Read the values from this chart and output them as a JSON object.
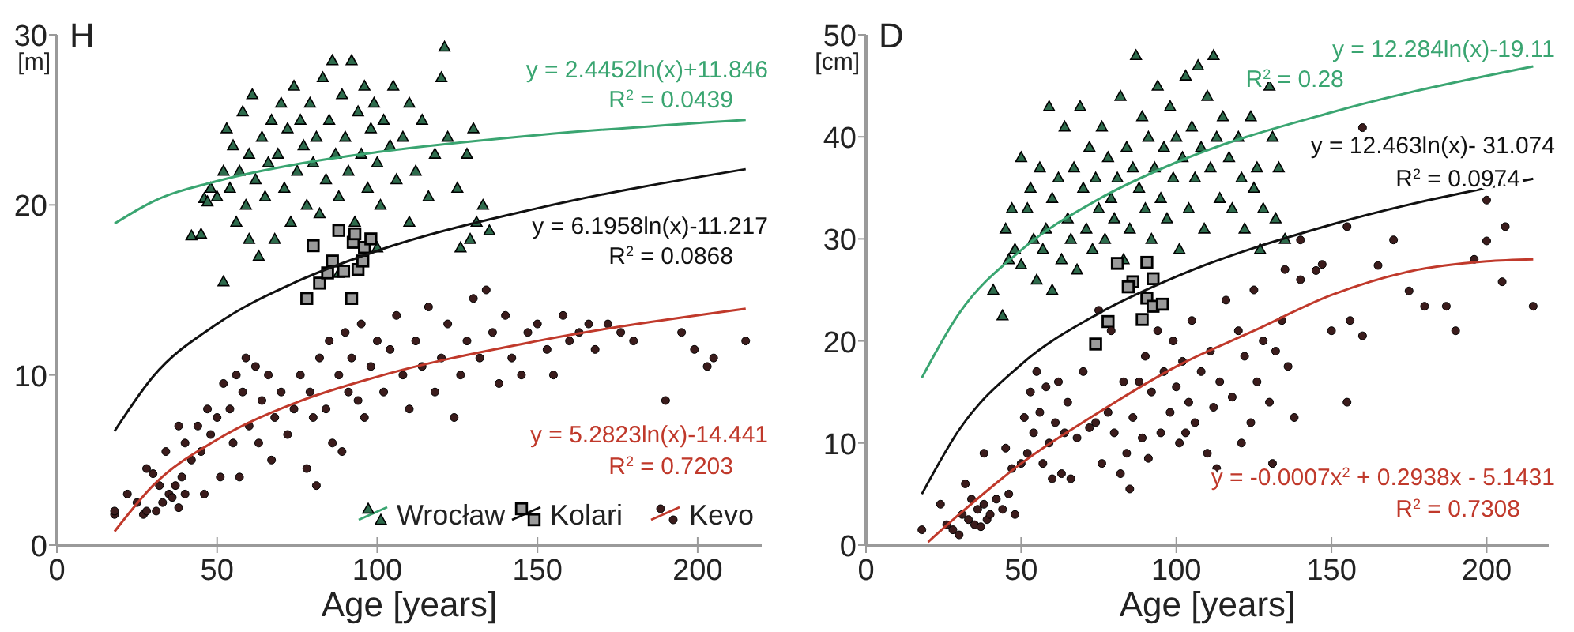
{
  "chart_data": [
    {
      "type": "scatter",
      "title": "H",
      "ylabel": "[m]",
      "xlabel": "Age [years]",
      "xlim": [
        0,
        220
      ],
      "ylim": [
        0,
        30
      ],
      "xticks": [
        0,
        50,
        100,
        150,
        200
      ],
      "yticks": [
        0,
        10,
        20,
        30
      ],
      "legend": "bottom right",
      "series": [
        {
          "name": "Wrocław",
          "marker": "triangle",
          "color": "#2e6b4c",
          "x": [
            42,
            45,
            46,
            47,
            48,
            50,
            52,
            52,
            53,
            54,
            55,
            56,
            57,
            58,
            59,
            60,
            60,
            61,
            62,
            63,
            64,
            65,
            66,
            67,
            68,
            69,
            70,
            71,
            72,
            73,
            74,
            75,
            76,
            77,
            78,
            79,
            80,
            81,
            82,
            83,
            84,
            85,
            86,
            87,
            88,
            89,
            90,
            91,
            92,
            93,
            94,
            95,
            96,
            97,
            98,
            99,
            100,
            101,
            102,
            104,
            105,
            106,
            108,
            110,
            112,
            114,
            116,
            118,
            120,
            121,
            122,
            125,
            128,
            130,
            131,
            133,
            135,
            126,
            129,
            110,
            100,
            88
          ],
          "values": [
            18.2,
            18.3,
            20.4,
            20.2,
            21,
            20.5,
            15.5,
            22,
            24.5,
            21,
            23.5,
            19,
            22,
            25.5,
            20,
            18,
            23,
            26.5,
            21.5,
            17,
            24,
            20.5,
            22.5,
            25,
            18,
            23,
            26,
            21,
            24.5,
            19,
            27,
            22,
            25,
            23.5,
            20,
            26,
            22.5,
            24,
            19.5,
            27.5,
            21.5,
            25,
            28.5,
            23,
            20.5,
            26.5,
            24,
            22,
            28.5,
            19,
            25.5,
            23,
            27,
            21,
            24.5,
            26,
            22.5,
            20,
            25,
            23.5,
            27,
            21.5,
            24,
            26,
            22,
            25,
            20.5,
            23,
            27.5,
            29.3,
            24,
            21,
            23,
            24.5,
            19,
            20,
            18.5,
            17.5,
            18,
            19,
            17.5,
            16
          ]
        },
        {
          "name": "Kolari",
          "marker": "square",
          "color": "#9a9a9a",
          "x": [
            78,
            82,
            80,
            84.5,
            86,
            88,
            89.5,
            92,
            92.5,
            94,
            95.5,
            96,
            93,
            98
          ],
          "values": [
            14.5,
            15.4,
            17.6,
            16,
            16.7,
            18.5,
            16.1,
            14.5,
            17.8,
            16.2,
            16.7,
            17.5,
            18.3,
            18
          ]
        },
        {
          "name": "Kevo",
          "marker": "circle",
          "color": "#3b1c1c",
          "x": [
            18,
            18,
            22,
            25,
            27,
            28,
            28,
            30,
            31,
            32,
            33,
            34,
            35,
            36,
            37,
            38,
            38,
            39,
            40,
            40,
            42,
            44,
            45,
            46,
            47,
            48,
            50,
            51,
            52,
            54,
            55,
            56,
            57,
            58,
            59,
            60,
            62,
            63,
            64,
            66,
            67,
            68,
            70,
            72,
            74,
            76,
            78,
            79,
            80,
            81,
            82,
            84,
            85,
            86,
            88,
            89,
            90,
            91,
            92,
            94,
            95,
            96,
            98,
            100,
            102,
            104,
            106,
            108,
            110,
            112,
            114,
            116,
            118,
            120,
            122,
            124,
            126,
            128,
            130,
            132,
            134,
            136,
            138,
            140,
            142,
            145,
            147,
            150,
            153,
            155,
            158,
            160,
            163,
            166,
            168,
            172,
            176,
            180,
            190,
            195,
            199,
            203,
            205,
            215
          ],
          "values": [
            1.8,
            2,
            3,
            2.5,
            1.8,
            2,
            4.5,
            4.2,
            2,
            3.5,
            2.5,
            5.5,
            3,
            2.8,
            3.5,
            2.2,
            7,
            4,
            3,
            6,
            5,
            7,
            5.5,
            3,
            8,
            6.5,
            7.5,
            4,
            9.5,
            8,
            6,
            10,
            4,
            9,
            11,
            7,
            10.5,
            6,
            8.5,
            10,
            5,
            7.5,
            9,
            6.5,
            8,
            10,
            4.5,
            9,
            7.5,
            3.5,
            11,
            8,
            12,
            6,
            10,
            5.5,
            12.5,
            9,
            11,
            8.5,
            13,
            7.5,
            10.5,
            12,
            9,
            11.5,
            13.5,
            10,
            8,
            12,
            10.5,
            14,
            9,
            11,
            13,
            7.5,
            10,
            12,
            14.5,
            11,
            15,
            12.5,
            9.5,
            13.5,
            11,
            10,
            12.5,
            13,
            11.5,
            10,
            13.5,
            12,
            12.5,
            13,
            11.5,
            13,
            12.5,
            12,
            8.5,
            12.5,
            11.5,
            10.5,
            11,
            12
          ]
        },
        {
          "type": "line",
          "color": "#3aa571",
          "x": [
            18,
            30,
            50,
            75,
            100,
            150,
            215
          ],
          "values": [
            18.9,
            20.2,
            21.4,
            22.4,
            23.1,
            24.1,
            25
          ]
        },
        {
          "type": "line",
          "color": "#111111",
          "x": [
            18,
            30,
            50,
            75,
            100,
            150,
            215
          ],
          "values": [
            6.7,
            9.9,
            13,
            15.5,
            17.3,
            19.8,
            22.1
          ]
        },
        {
          "type": "line",
          "color": "#c0392b",
          "x": [
            18,
            30,
            50,
            75,
            100,
            150,
            215
          ],
          "values": [
            0.8,
            3.5,
            6.2,
            8.4,
            9.9,
            12,
            13.9
          ]
        }
      ],
      "annotations": [
        "y = 2.4452ln(x)+11.846",
        "R$^{2}$ = 0.0439",
        "y = 6.1958ln(x)-11.217",
        "R$^{2}$ = 0.0868",
        "y = 5.2823ln(x)-14.441",
        "R$^{2}$ = 0.7203"
      ]
    },
    {
      "type": "scatter",
      "title": "D",
      "ylabel": "[cm]",
      "xlabel": "Age [years]",
      "xlim": [
        0,
        220
      ],
      "ylim": [
        0,
        50
      ],
      "xticks": [
        0,
        50,
        100,
        150,
        200
      ],
      "yticks": [
        0,
        10,
        20,
        30,
        40,
        50
      ],
      "series": [
        {
          "marker": "triangle",
          "color": "#2e6b4c",
          "x": [
            41,
            44,
            45,
            46,
            47,
            48,
            50,
            50,
            52,
            53,
            54,
            55,
            56,
            57,
            58,
            59,
            60,
            60,
            62,
            63,
            64,
            65,
            66,
            67,
            68,
            69,
            70,
            71,
            72,
            73,
            74,
            75,
            76,
            77,
            78,
            79,
            80,
            81,
            82,
            83,
            84,
            85,
            86,
            87,
            88,
            89,
            90,
            91,
            92,
            93,
            94,
            95,
            96,
            97,
            98,
            99,
            100,
            101,
            102,
            103,
            104,
            105,
            106,
            107,
            108,
            109,
            110,
            111,
            112,
            113,
            114,
            115,
            117,
            118,
            120,
            121,
            122,
            124,
            126,
            128,
            130,
            131,
            132,
            133,
            135,
            125,
            127
          ],
          "values": [
            25,
            22.5,
            31,
            28,
            33,
            29,
            27.5,
            38,
            33,
            35,
            30,
            26,
            37,
            29,
            31,
            43,
            25,
            34,
            36,
            28,
            41,
            32,
            30,
            37,
            27,
            43,
            35,
            31,
            39,
            29,
            36,
            33,
            41,
            30,
            38,
            34,
            32,
            36,
            44,
            28,
            39,
            31,
            37,
            48,
            35,
            42,
            33,
            40,
            30,
            37,
            45,
            34,
            39,
            32,
            43,
            36,
            40,
            29,
            38,
            46,
            33,
            41,
            36,
            47,
            39,
            31,
            44,
            37,
            48,
            40,
            34,
            42,
            38,
            33,
            40,
            36,
            31,
            42,
            37,
            33,
            45,
            40,
            32,
            37,
            30,
            35,
            29
          ]
        },
        {
          "marker": "square",
          "color": "#9a9a9a",
          "x": [
            74,
            78,
            89,
            90.5,
            92.5,
            95.5,
            86,
            84.5,
            90.5,
            92.5,
            81
          ],
          "values": [
            19.7,
            21.9,
            22.1,
            24.2,
            23.4,
            23.6,
            25.8,
            25.3,
            27.7,
            26.1,
            27.6
          ]
        },
        {
          "marker": "circle",
          "color": "#3b1c1c",
          "x": [
            18,
            24,
            26,
            28,
            30,
            31,
            32,
            33,
            34,
            35,
            36,
            37,
            38,
            38,
            39,
            40,
            42,
            44,
            45,
            46,
            47,
            48,
            50,
            51,
            52,
            53,
            54,
            55,
            56,
            57,
            58,
            59,
            60,
            61,
            62,
            63,
            64,
            65,
            66,
            68,
            70,
            72,
            74,
            75,
            76,
            78,
            79,
            80,
            82,
            83,
            84,
            85,
            86,
            88,
            89,
            90,
            91,
            92,
            94,
            95,
            96,
            98,
            99,
            100,
            101,
            102,
            103,
            104,
            105,
            106,
            108,
            110,
            111,
            112,
            113,
            114,
            116,
            118,
            120,
            121,
            122,
            124,
            125,
            126,
            128,
            130,
            131,
            132,
            134,
            135,
            136,
            138,
            140,
            140,
            145,
            147,
            150,
            155,
            155,
            156,
            160,
            160,
            165,
            170,
            175,
            180,
            187,
            190,
            196,
            200,
            200,
            205,
            206,
            215
          ],
          "values": [
            1.5,
            4,
            2,
            1.5,
            1,
            3,
            6,
            2.5,
            4.5,
            2,
            3.5,
            1.8,
            9,
            4,
            2.5,
            3,
            4.5,
            3.5,
            9.5,
            5,
            7.5,
            3,
            8,
            12.5,
            9,
            15,
            11,
            17,
            13,
            8,
            15.5,
            10,
            6.5,
            12,
            16,
            7,
            11,
            14,
            6.5,
            10.5,
            17,
            11.5,
            12,
            23,
            8,
            13,
            21,
            11,
            7,
            16,
            9,
            5.5,
            12.5,
            16,
            10.5,
            18.5,
            8.5,
            15,
            21,
            11,
            17,
            13,
            20,
            15.5,
            10,
            18,
            11,
            14,
            22,
            12,
            17,
            9,
            19,
            13.5,
            7.5,
            16,
            24,
            14.5,
            21,
            10,
            18.5,
            12,
            25,
            16,
            20,
            14,
            8,
            19,
            22,
            27,
            17.5,
            12.5,
            26,
            29.9,
            26.9,
            27.5,
            21,
            31.2,
            14,
            22,
            40.9,
            20.5,
            27.4,
            29.9,
            24.9,
            23.4,
            23.4,
            21,
            28,
            33.8,
            29.8,
            25.8,
            31.2,
            23.4
          ]
        },
        {
          "type": "line",
          "color": "#3aa571",
          "x": [
            18,
            30,
            50,
            75,
            100,
            150,
            215
          ],
          "values": [
            16.4,
            22.7,
            28.9,
            33.9,
            37.5,
            42.4,
            46.9
          ]
        },
        {
          "type": "line",
          "color": "#111111",
          "x": [
            18,
            30,
            50,
            75,
            100,
            150,
            215
          ],
          "values": [
            5,
            11.3,
            17.7,
            22.7,
            26.3,
            31.4,
            35.9
          ]
        },
        {
          "type": "line",
          "color": "#c0392b",
          "x": [
            20,
            30,
            50,
            75,
            100,
            125,
            150,
            175,
            200,
            215
          ],
          "values": [
            0.3,
            3,
            8,
            13,
            17.5,
            21,
            24.5,
            26.8,
            27.8,
            28
          ]
        }
      ],
      "annotations": [
        "y = 12.284ln(x)-19.11",
        "R$^{2}$ = 0.28",
        "y = 12.463ln(x)- 31.074",
        "R$^{2}$ = 0.0974",
        "y = -0.0007x$^{2}$ + 0.2938x - 5.1431",
        "R$^{2}$ = 0.7308"
      ]
    }
  ]
}
